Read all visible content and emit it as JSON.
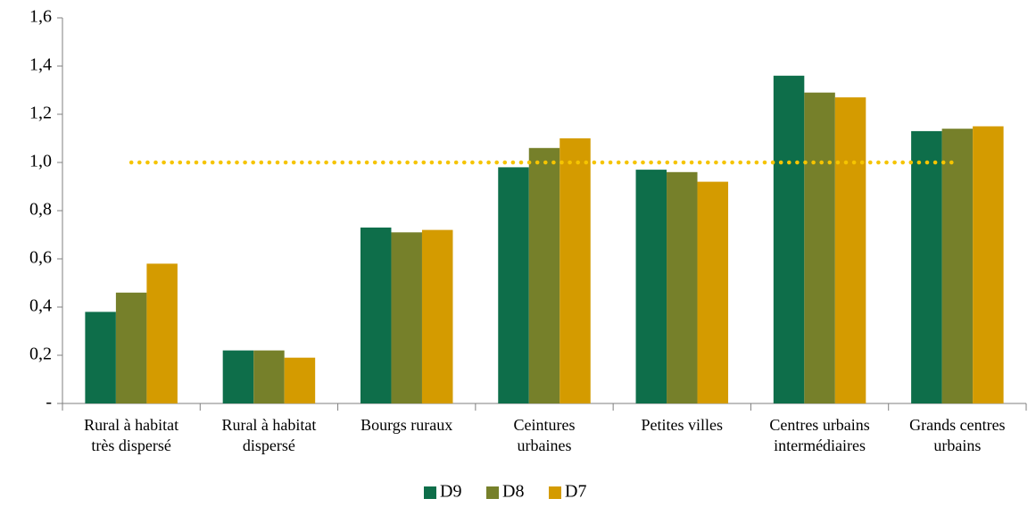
{
  "chart_data": {
    "type": "bar",
    "categories": [
      "Rural à habitat\ntrès dispersé",
      "Rural à habitat\ndispersé",
      "Bourgs ruraux",
      "Ceintures\nurbaines",
      "Petites villes",
      "Centres urbains\nintermédiaires",
      "Grands centres\nurbains"
    ],
    "series": [
      {
        "name": "D9",
        "color": "#0e6e4a",
        "values": [
          0.38,
          0.22,
          0.73,
          0.98,
          0.97,
          1.36,
          1.13
        ]
      },
      {
        "name": "D8",
        "color": "#76802a",
        "values": [
          0.46,
          0.22,
          0.71,
          1.06,
          0.96,
          1.29,
          1.14
        ]
      },
      {
        "name": "D7",
        "color": "#d49b00",
        "values": [
          0.58,
          0.19,
          0.72,
          1.1,
          0.92,
          1.27,
          1.15
        ]
      }
    ],
    "ylim": [
      0,
      1.6
    ],
    "yticks": [
      {
        "value": 0,
        "label": "-"
      },
      {
        "value": 0.2,
        "label": "0,2"
      },
      {
        "value": 0.4,
        "label": "0,4"
      },
      {
        "value": 0.6,
        "label": "0,6"
      },
      {
        "value": 0.8,
        "label": "0,8"
      },
      {
        "value": 1.0,
        "label": "1,0"
      },
      {
        "value": 1.2,
        "label": "1,2"
      },
      {
        "value": 1.4,
        "label": "1,4"
      },
      {
        "value": 1.6,
        "label": "1,6"
      }
    ],
    "reference_line": {
      "value": 1.0,
      "color": "#f5c400"
    },
    "grid": false,
    "legend": "bottom"
  }
}
